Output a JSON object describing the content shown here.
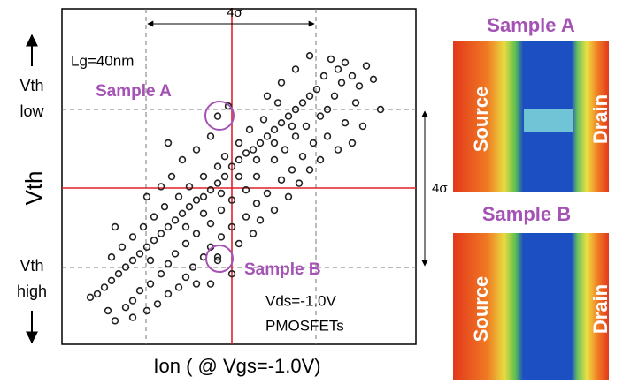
{
  "chart_data": {
    "type": "scatter",
    "xlabel": "Ion ( @ Vgs=-1.0V)",
    "ylabel": "Vth",
    "annotations": {
      "lg": "Lg=40nm",
      "sample_a": "Sample A",
      "sample_b": "Sample B",
      "vds": "Vds=-1.0V",
      "device": "PMOSFETs",
      "sigma_x": "4σ",
      "sigma_y": "4σ",
      "vth_low": [
        "Vth",
        "low"
      ],
      "vth_high": [
        "Vth",
        "high"
      ]
    },
    "color": "#222222",
    "xlim": [
      0,
      100
    ],
    "ylim": [
      0,
      100
    ],
    "x": [
      86,
      80,
      78,
      76,
      82,
      88,
      84,
      79,
      74,
      72,
      77,
      70,
      83,
      75,
      68,
      66,
      73,
      80,
      64,
      62,
      69,
      75,
      60,
      58,
      66,
      71,
      56,
      54,
      63,
      68,
      52,
      50,
      60,
      65,
      48,
      47,
      46,
      55,
      62,
      44,
      42,
      52,
      58,
      40,
      38,
      48,
      55,
      36,
      45,
      52,
      34,
      32,
      42,
      48,
      30,
      28,
      38,
      45,
      26,
      35,
      42,
      24,
      22,
      32,
      40,
      20,
      30,
      37,
      18,
      28,
      35,
      16,
      25,
      33,
      14,
      22,
      30,
      12,
      20,
      27,
      48,
      42,
      10,
      18,
      24,
      13,
      20,
      8,
      15,
      46,
      44,
      50,
      53,
      57,
      61,
      40,
      36,
      33,
      29,
      26,
      23,
      20,
      17,
      14,
      60,
      64,
      67,
      70,
      73,
      56,
      50,
      38,
      44,
      54,
      34,
      38,
      42,
      24,
      28,
      31,
      82,
      78,
      85,
      58,
      62,
      66,
      70,
      30,
      15,
      90,
      40,
      45,
      35,
      50,
      55,
      25,
      60,
      65,
      44,
      44
    ],
    "values": [
      83,
      84,
      82,
      85,
      80,
      79,
      77,
      78,
      80,
      76,
      74,
      74,
      72,
      70,
      72,
      70,
      68,
      66,
      68,
      66,
      65,
      62,
      64,
      62,
      62,
      60,
      60,
      58,
      58,
      56,
      57,
      55,
      55,
      52,
      53,
      71,
      50,
      50,
      49,
      48,
      46,
      46,
      45,
      44,
      43,
      43,
      42,
      41,
      40,
      38,
      39,
      37,
      36,
      35,
      35,
      33,
      33,
      32,
      31,
      30,
      29,
      29,
      27,
      27,
      26,
      25,
      24,
      23,
      23,
      21,
      20,
      21,
      18,
      17,
      19,
      16,
      15,
      17,
      13,
      12,
      21,
      18,
      15,
      11,
      10,
      10,
      8,
      14,
      7,
      56,
      53,
      60,
      64,
      67,
      72,
      50,
      47,
      44,
      41,
      38,
      35,
      32,
      29,
      26,
      40,
      44,
      48,
      52,
      55,
      37,
      30,
      18,
      25,
      33,
      55,
      58,
      62,
      44,
      47,
      50,
      60,
      58,
      65,
      74,
      78,
      82,
      86,
      60,
      35,
      70,
      39,
      45,
      35,
      50,
      55,
      25,
      60,
      65,
      68,
      26
    ]
  },
  "images": [
    {
      "title": "Sample A",
      "source": "Source",
      "drain": "Drain"
    },
    {
      "title": "Sample B",
      "source": "Source",
      "drain": "Drain"
    }
  ]
}
